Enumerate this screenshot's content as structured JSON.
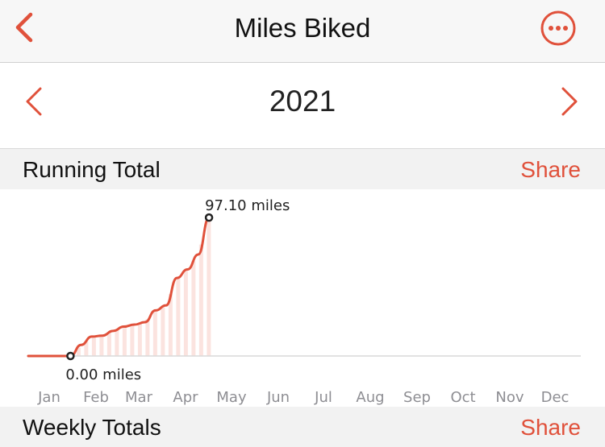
{
  "nav": {
    "title": "Miles Biked",
    "back_icon": "chevron-left-icon",
    "more_icon": "ellipsis-circle-icon",
    "accent": "#e0513b"
  },
  "year": {
    "label": "2021"
  },
  "running_total": {
    "title": "Running Total",
    "share_label": "Share"
  },
  "weekly_totals": {
    "title": "Weekly Totals",
    "share_label": "Share"
  },
  "chart_data": {
    "type": "area",
    "categories": [
      "Jan",
      "Feb",
      "Mar",
      "Apr",
      "May",
      "Jun",
      "Jul",
      "Aug",
      "Sep",
      "Oct",
      "Nov",
      "Dec"
    ],
    "x": [
      "2021-01-01",
      "2021-01-08",
      "2021-01-15",
      "2021-01-22",
      "2021-01-29",
      "2021-02-05",
      "2021-02-12",
      "2021-02-19",
      "2021-02-26",
      "2021-03-05",
      "2021-03-12",
      "2021-03-19",
      "2021-03-26",
      "2021-04-02",
      "2021-04-09",
      "2021-04-16",
      "2021-04-23",
      "2021-04-30"
    ],
    "y": [
      0,
      0,
      0,
      0,
      0,
      7.8,
      13.6,
      14.3,
      17.6,
      20.6,
      22.0,
      23.7,
      32.0,
      35.5,
      54.7,
      60.7,
      71.2,
      97.1
    ],
    "start_label": "0.00 miles",
    "end_label": "97.10 miles",
    "ylim": [
      0,
      100
    ],
    "color": "#e0513b"
  }
}
